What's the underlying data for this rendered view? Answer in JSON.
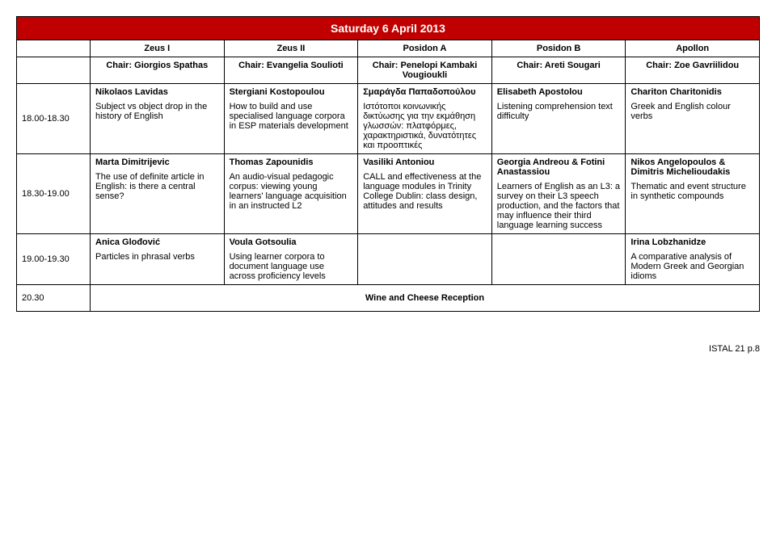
{
  "colors": {
    "title_bg": "#c00000",
    "title_fg": "#ffffff",
    "border": "#000000",
    "page_bg": "#ffffff",
    "text": "#000000"
  },
  "day_title": "Saturday 6 April 2013",
  "rooms": [
    "Zeus I",
    "Zeus II",
    "Posidon A",
    "Posidon B",
    "Apollon"
  ],
  "chairs": [
    "Chair: Giorgios Spathas",
    "Chair: Evangelia Soulioti",
    "Chair: Penelopi Kambaki Vougioukli",
    "Chair: Areti Sougari",
    "Chair: Zoe Gavriilidou"
  ],
  "sessions": [
    {
      "time": "18.00-18.30",
      "cells": [
        {
          "name": "Nikolaos Lavidas",
          "desc": "Subject vs object drop in the history of English"
        },
        {
          "name": "Stergiani Kostopoulou",
          "desc": "How to build and use specialised language corpora in ESP materials development"
        },
        {
          "name": "Σμαράγδα Παπαδοπούλου",
          "desc": "Ιστότοποι κοινωνικής δικτύωσης για την εκμάθηση γλωσσών: πλατφόρμες, χαρακτηριστικά, δυνατότητες και προοπτικές"
        },
        {
          "name": "Elisabeth Apostolou",
          "desc": "Listening comprehension text difficulty"
        },
        {
          "name": "Chariton Charitonidis",
          "desc": "Greek and English colour verbs"
        }
      ]
    },
    {
      "time": "18.30-19.00",
      "cells": [
        {
          "name": "Marta Dimitrijevic",
          "desc": "The use of definite article in English: is there a central sense?"
        },
        {
          "name": "Thomas Zapounidis",
          "desc": "An audio-visual pedagogic corpus: viewing young learners' language acquisition in an instructed L2"
        },
        {
          "name": "Vasiliki Antoniou",
          "desc": "CALL and effectiveness at the language modules in Trinity College Dublin: class design, attitudes and results"
        },
        {
          "name": "Georgia Andreou & Fotini Anastassiou",
          "desc": "Learners of English as an L3: a survey on their L3 speech production, and the factors that may influence their third language learning success"
        },
        {
          "name": "Nikos Angelopoulos & Dimitris Michelioudakis",
          "desc": "Thematic and event structure in synthetic compounds"
        }
      ]
    },
    {
      "time": "19.00-19.30",
      "cells": [
        {
          "name": "Anica Glođović",
          "desc": "Particles in phrasal verbs"
        },
        {
          "name": "Voula Gotsoulia",
          "desc": "Using learner corpora to document language use across proficiency levels"
        },
        {
          "name": "",
          "desc": ""
        },
        {
          "name": "",
          "desc": ""
        },
        {
          "name": "Irina Lobzhanidze",
          "desc": "A comparative analysis of Modern Greek and Georgian idioms"
        }
      ]
    }
  ],
  "reception": {
    "time": "20.30",
    "label": "Wine and Cheese Reception"
  },
  "footer": "ISTAL 21 p.8"
}
